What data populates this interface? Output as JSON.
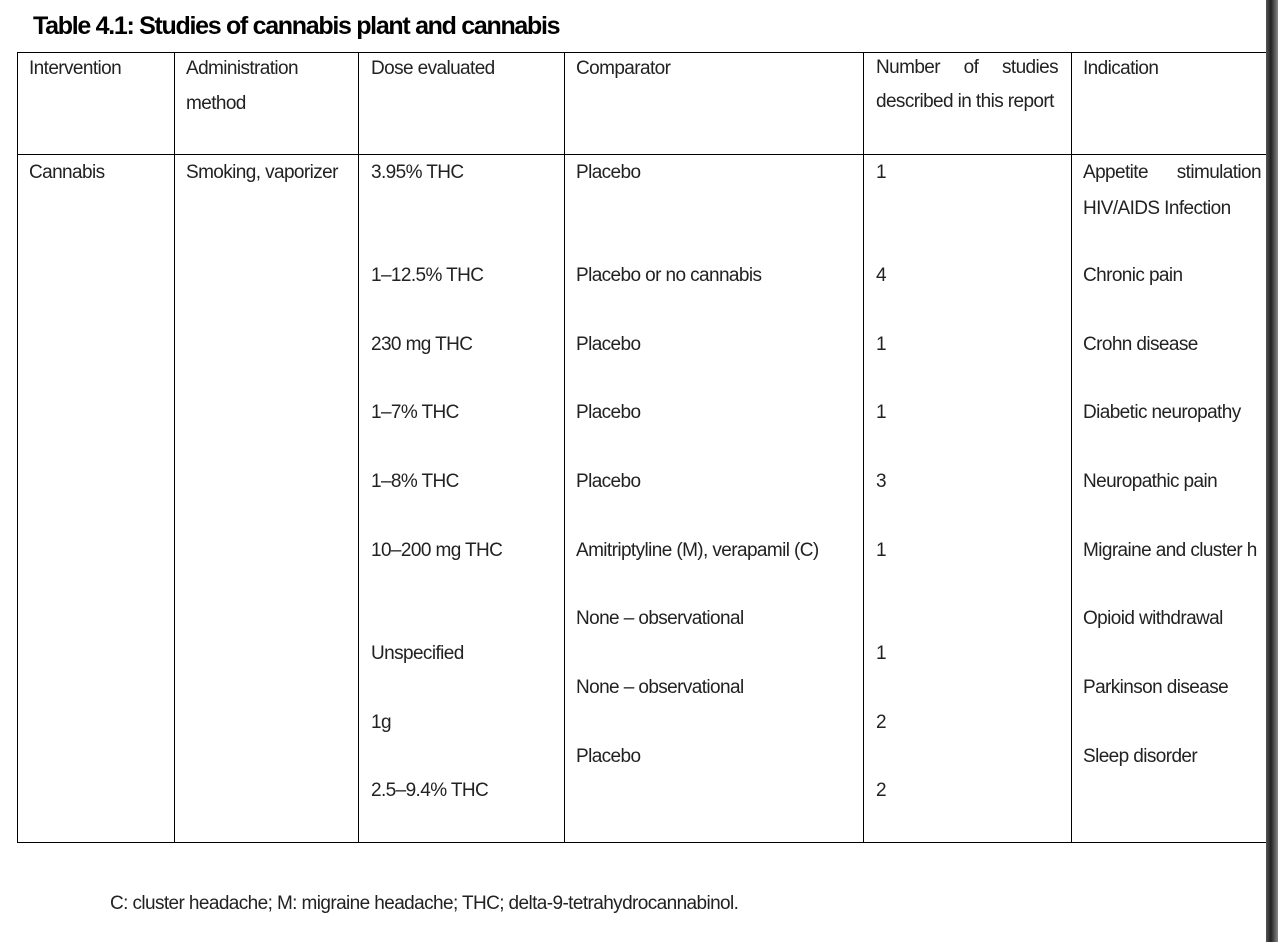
{
  "title": "Table 4.1: Studies of cannabis plant and cannabis",
  "table": {
    "headers": [
      "Intervention",
      "Administration method",
      "Dose evaluated",
      "Comparator",
      "Number of studies described in this report",
      "Indication"
    ],
    "rows": [
      {
        "intervention": "Cannabis",
        "method": "Smoking, vaporizer",
        "doses": [
          "3.95% THC",
          "1–12.5% THC",
          "230 mg THC",
          "1–7% THC",
          "1–8% THC",
          "10–200 mg THC",
          "Unspecified",
          "1g",
          "2.5–9.4% THC"
        ],
        "comparators": [
          "Placebo",
          "Placebo or no cannabis",
          "Placebo",
          "Placebo",
          "Placebo",
          "Amitriptyline (M), verapamil (C)",
          "None – observational",
          "None – observational",
          "Placebo"
        ],
        "studies": [
          1,
          4,
          1,
          1,
          3,
          1,
          1,
          2,
          2
        ],
        "indications": [
          "Appetite stimulation HIV/AIDS Infection",
          "Chronic pain",
          "Crohn disease",
          "Diabetic neuropathy",
          "Neuropathic pain",
          "Migraine and cluster h",
          "Opioid withdrawal",
          "Parkinson disease",
          "Sleep disorder"
        ]
      }
    ]
  },
  "footnote": "C: cluster headache; M: migraine headache; THC; delta-9-tetrahydrocannabinol."
}
